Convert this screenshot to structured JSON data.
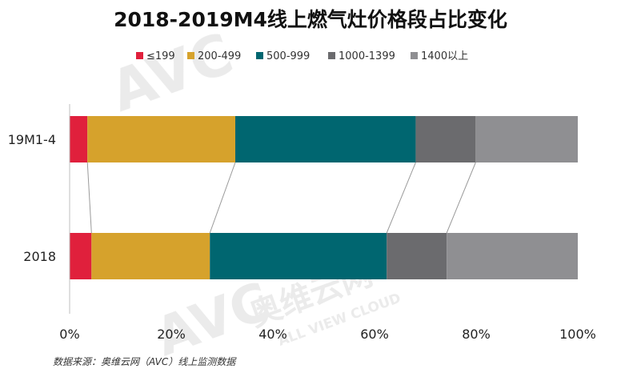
{
  "chart_data": {
    "type": "bar",
    "orientation": "horizontal",
    "stacked": true,
    "percent": true,
    "title": "2018-2019M4线上燃气灶价格段占比变化",
    "categories": [
      "19M1-4",
      "2018"
    ],
    "series": [
      {
        "name": "≤199",
        "color": "#e0203c",
        "values": [
          3.5,
          4.3
        ]
      },
      {
        "name": "200-499",
        "color": "#d6a22c",
        "values": [
          29.1,
          23.3
        ]
      },
      {
        "name": "500-999",
        "color": "#006670",
        "values": [
          35.5,
          34.8
        ]
      },
      {
        "name": "1000-1399",
        "color": "#6b6b6e",
        "values": [
          11.8,
          11.8
        ]
      },
      {
        "name": "1400以上",
        "color": "#8f8f92",
        "values": [
          20.1,
          25.8
        ]
      }
    ],
    "xlim": [
      0,
      100
    ],
    "xticks": [
      "0%",
      "20%",
      "40%",
      "60%",
      "80%",
      "100%"
    ],
    "grid": false,
    "legend": "top",
    "connector_lines": true
  },
  "source": "数据来源：奥维云网（AVC）线上监测数据",
  "watermark": {
    "logo": "AVC",
    "cn": "奥维云网",
    "en": "ALL VIEW CLOUD"
  }
}
